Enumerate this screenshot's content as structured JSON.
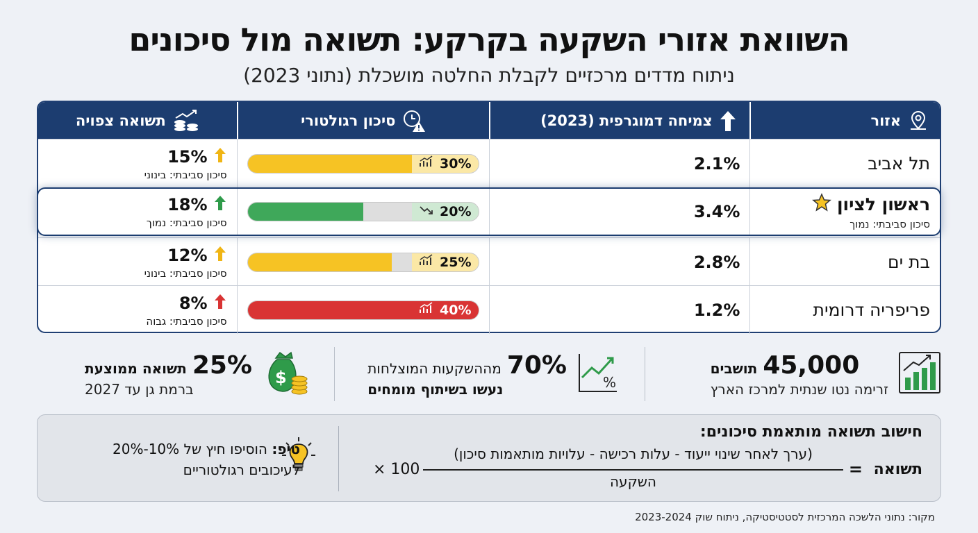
{
  "title": "השוואת אזורי השקעה בקרקע: תשואה מול סיכונים",
  "subtitle": "ניתוח מדדים מרכזיים לקבלת החלטה מושכלת (נתוני 2023)",
  "table": {
    "headers": {
      "region": "אזור",
      "growth": "צמיחה דמוגרפית (2023)",
      "risk": "סיכון רגולטורי",
      "return": "תשואה צפויה"
    },
    "rows": [
      {
        "region": "תל אביב",
        "region_note": "",
        "growth": "2.1%",
        "risk_label": "30%",
        "risk_value": 30,
        "risk_color": "#f6c324",
        "risk_label_bg": "#fbe8a6",
        "risk_trend": "up",
        "return": "15%",
        "return_color": "#f0b514",
        "return_note": "סיכון סביבתי: בינוני"
      },
      {
        "region": "ראשון לציון",
        "region_note": "סיכון סביבתי: נמוך",
        "growth": "3.4%",
        "risk_label": "20%",
        "risk_value": 20,
        "risk_color": "#3fa85a",
        "risk_label_bg": "#cfe9d3",
        "risk_trend": "down",
        "return": "18%",
        "return_color": "#2f9b4a",
        "return_note": "סיכון סביבתי: נמוך"
      },
      {
        "region": "בת ים",
        "region_note": "",
        "growth": "2.8%",
        "risk_label": "25%",
        "risk_value": 25,
        "risk_color": "#f6c324",
        "risk_label_bg": "#fbe8a6",
        "risk_trend": "up",
        "return": "12%",
        "return_color": "#f0b514",
        "return_note": "סיכון סביבתי: בינוני"
      },
      {
        "region": "פריפריה דרומית",
        "region_note": "",
        "growth": "1.2%",
        "risk_label": "40%",
        "risk_value": 40,
        "risk_color": "#d93434",
        "risk_label_bg": "#d93434",
        "risk_trend": "up",
        "return": "8%",
        "return_color": "#d93434",
        "return_note": "סיכון סביבתי: גבוה"
      }
    ]
  },
  "stats": {
    "residents": {
      "number": "45,000",
      "label": "תושבים",
      "sub": "זרימה נטו שנתית למרכז הארץ"
    },
    "experts": {
      "number": "70%",
      "label": "מההשקעות המוצלחות",
      "sub": "נעשו בשיתוף מומחים"
    },
    "avg_return": {
      "number": "25%",
      "label": "תשואה ממוצעת",
      "sub": "ברמת גן עד 2027"
    }
  },
  "formula": {
    "title": "חישוב תשואה מותאמת סיכונים:",
    "label": "תשואה",
    "equals": "=",
    "numerator": "(ערך לאחר שינוי ייעוד - עלות רכישה - עלויות מותאמות סיכון)",
    "denominator": "השקעה",
    "multiplier": "× 100"
  },
  "tip": {
    "label": "טיפ:",
    "text": "הוסיפו חיץ של 10%-20% לעיכובים רגולטוריים"
  },
  "source": "מקור: נתוני הלשכה המרכזית לסטטיסטיקה, ניתוח שוק 2023-2024",
  "colors": {
    "header": "#1c3d70",
    "green": "#2f9b4a",
    "yellow": "#f6c324",
    "red": "#d93434"
  }
}
